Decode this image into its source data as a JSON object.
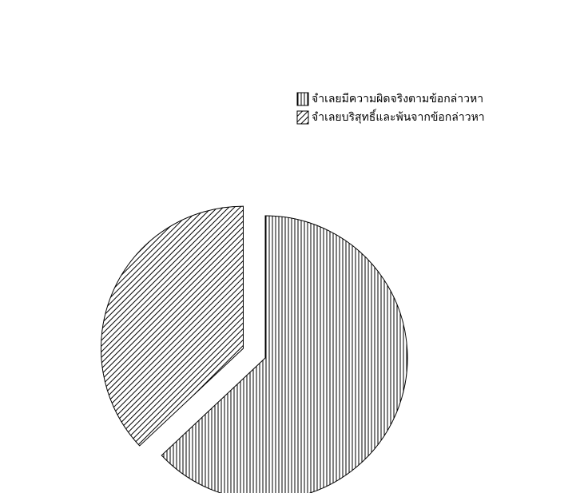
{
  "chart_data": {
    "type": "pie",
    "categories": [
      "จำเลยมีความผิดจริงตามข้อกล่าวหา",
      "จำเลยบริสุทธิ์และพ้นจากข้อกล่าวหา"
    ],
    "values": [
      63,
      37
    ],
    "hatch": [
      "vertical",
      "diagonal"
    ],
    "exploded": [
      false,
      true
    ],
    "legend": "top-right"
  }
}
